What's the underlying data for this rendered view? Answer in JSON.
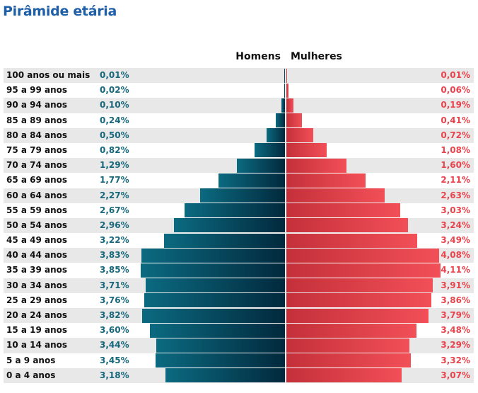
{
  "title": "Pirâmide etária",
  "chart_data": {
    "type": "bar",
    "orientation": "horizontal-pyramid",
    "categories": [
      "100 anos ou mais",
      "95 a 99 anos",
      "90 a 94 anos",
      "85 a 89 anos",
      "80 a 84 anos",
      "75 a 79 anos",
      "70 a 74 anos",
      "65 a 69 anos",
      "60 a 64 anos",
      "55 a 59 anos",
      "50 a 54 anos",
      "45 a 49 anos",
      "40 a 44 anos",
      "35 a 39 anos",
      "30 a 34 anos",
      "25 a 29 anos",
      "20 a 24 anos",
      "15 a 19 anos",
      "10 a 14 anos",
      "5 a 9 anos",
      "0 a 4 anos"
    ],
    "series": [
      {
        "name": "Homens",
        "color": "#0b6a80",
        "values": [
          0.01,
          0.02,
          0.1,
          0.24,
          0.5,
          0.82,
          1.29,
          1.77,
          2.27,
          2.67,
          2.96,
          3.22,
          3.83,
          3.85,
          3.71,
          3.76,
          3.82,
          3.6,
          3.44,
          3.45,
          3.18
        ],
        "labels": [
          "0,01%",
          "0,02%",
          "0,10%",
          "0,24%",
          "0,50%",
          "0,82%",
          "1,29%",
          "1,77%",
          "2,27%",
          "2,67%",
          "2,96%",
          "3,22%",
          "3,83%",
          "3,85%",
          "3,71%",
          "3,76%",
          "3,82%",
          "3,60%",
          "3,44%",
          "3,45%",
          "3,18%"
        ]
      },
      {
        "name": "Mulheres",
        "color": "#f24f57",
        "values": [
          0.01,
          0.06,
          0.19,
          0.41,
          0.72,
          1.08,
          1.6,
          2.11,
          2.63,
          3.03,
          3.24,
          3.49,
          4.08,
          4.11,
          3.91,
          3.86,
          3.79,
          3.48,
          3.29,
          3.32,
          3.07
        ],
        "labels": [
          "0,01%",
          "0,06%",
          "0,19%",
          "0,41%",
          "0,72%",
          "1,08%",
          "1,60%",
          "2,11%",
          "2,63%",
          "3,03%",
          "3,24%",
          "3,49%",
          "4,08%",
          "4,11%",
          "3,91%",
          "3,86%",
          "3,79%",
          "3,48%",
          "3,29%",
          "3,32%",
          "3,07%"
        ]
      }
    ],
    "unit": "%",
    "grid": false,
    "legend_placement": "top-center"
  }
}
